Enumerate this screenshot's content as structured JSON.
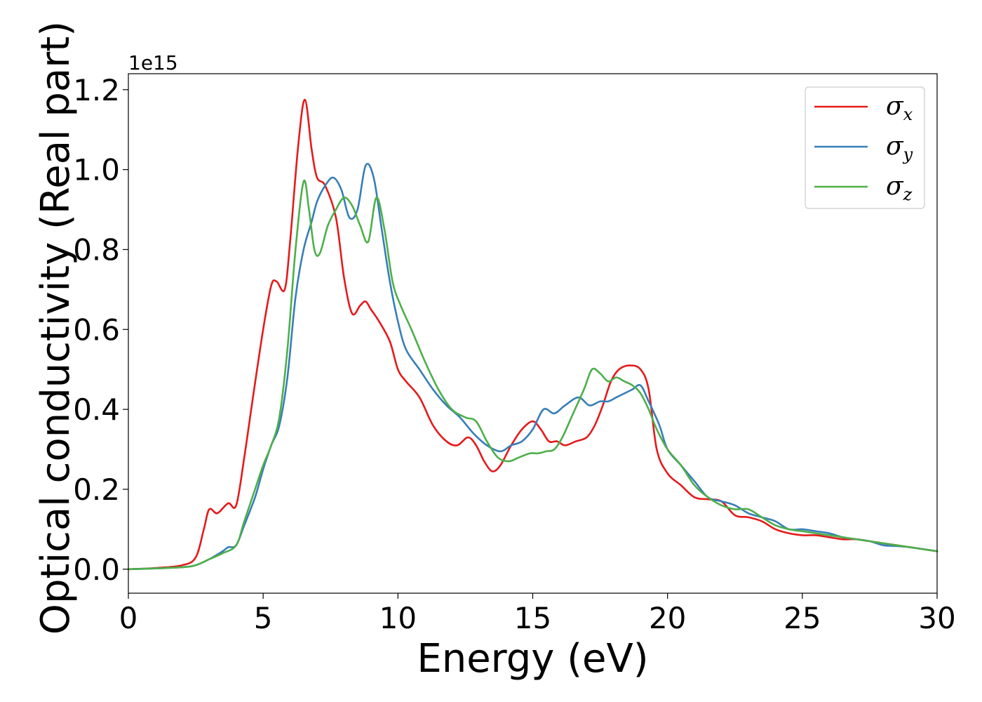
{
  "chart_data": {
    "type": "line",
    "title": "",
    "xlabel": "Energy (eV)",
    "ylabel": "Optical conductivity (Real part)",
    "y_offset_label": "1e15",
    "xlim": [
      0,
      30
    ],
    "ylim": [
      -0.06,
      1.24
    ],
    "y_scale_factor": 1000000000000000.0,
    "xticks": [
      0,
      5,
      10,
      15,
      20,
      25,
      30
    ],
    "xtick_labels": [
      "0",
      "5",
      "10",
      "15",
      "20",
      "25",
      "30"
    ],
    "yticks": [
      0.0,
      0.2,
      0.4,
      0.6,
      0.8,
      1.0,
      1.2
    ],
    "ytick_labels": [
      "0.0",
      "0.2",
      "0.4",
      "0.6",
      "0.8",
      "1.0",
      "1.2"
    ],
    "grid": false,
    "legend_position": "top-right",
    "series": [
      {
        "name": "σ",
        "subscript": "x",
        "color": "#e41a1c",
        "x": [
          0,
          1,
          2,
          2.5,
          2.8,
          3.0,
          3.3,
          3.7,
          4.0,
          4.3,
          4.6,
          5.0,
          5.3,
          5.5,
          5.8,
          6.0,
          6.3,
          6.55,
          6.8,
          7.0,
          7.3,
          7.7,
          8.0,
          8.3,
          8.6,
          8.8,
          9.0,
          9.3,
          9.7,
          10.0,
          10.3,
          10.8,
          11.3,
          11.8,
          12.2,
          12.6,
          12.9,
          13.2,
          13.5,
          13.8,
          14.2,
          14.6,
          15.0,
          15.3,
          15.6,
          15.9,
          16.2,
          16.6,
          17.0,
          17.3,
          17.6,
          17.9,
          18.2,
          18.6,
          19.0,
          19.3,
          19.6,
          20.0,
          20.5,
          21.0,
          21.5,
          22.0,
          22.5,
          23.0,
          23.5,
          24.0,
          24.5,
          25.0,
          25.5,
          26.0,
          26.5,
          27.0,
          27.5,
          28.0,
          28.5,
          29.0,
          29.5,
          30.0
        ],
        "y": [
          0.0,
          0.003,
          0.01,
          0.03,
          0.1,
          0.15,
          0.14,
          0.165,
          0.16,
          0.28,
          0.42,
          0.6,
          0.71,
          0.72,
          0.7,
          0.82,
          1.06,
          1.175,
          1.05,
          0.98,
          0.96,
          0.88,
          0.73,
          0.64,
          0.66,
          0.67,
          0.65,
          0.62,
          0.57,
          0.5,
          0.47,
          0.43,
          0.36,
          0.32,
          0.31,
          0.33,
          0.31,
          0.27,
          0.245,
          0.26,
          0.31,
          0.35,
          0.37,
          0.35,
          0.32,
          0.32,
          0.31,
          0.32,
          0.33,
          0.36,
          0.41,
          0.47,
          0.5,
          0.51,
          0.5,
          0.45,
          0.3,
          0.24,
          0.21,
          0.18,
          0.175,
          0.17,
          0.135,
          0.13,
          0.12,
          0.1,
          0.09,
          0.085,
          0.085,
          0.08,
          0.075,
          0.075,
          0.07,
          0.065,
          0.06,
          0.055,
          0.05,
          0.045
        ]
      },
      {
        "name": "σ",
        "subscript": "y",
        "color": "#377eb8",
        "x": [
          0,
          1,
          2,
          2.5,
          3.0,
          3.5,
          3.7,
          4.0,
          4.3,
          4.7,
          5.0,
          5.3,
          5.6,
          5.9,
          6.2,
          6.5,
          6.8,
          7.0,
          7.3,
          7.6,
          7.9,
          8.2,
          8.5,
          8.8,
          9.1,
          9.4,
          9.7,
          10.0,
          10.3,
          10.8,
          11.3,
          11.8,
          12.3,
          12.8,
          13.3,
          13.8,
          14.2,
          14.6,
          15.0,
          15.4,
          15.8,
          16.2,
          16.7,
          17.1,
          17.5,
          17.8,
          18.1,
          18.4,
          18.7,
          19.0,
          19.3,
          19.7,
          20.0,
          20.5,
          21.0,
          21.5,
          22.0,
          22.5,
          23.0,
          23.5,
          24.0,
          24.5,
          25.0,
          25.5,
          26.0,
          26.5,
          27.0,
          27.5,
          28.0,
          28.5,
          29.0,
          29.5,
          30.0
        ],
        "y": [
          0.0,
          0.002,
          0.005,
          0.01,
          0.025,
          0.045,
          0.055,
          0.06,
          0.11,
          0.18,
          0.25,
          0.31,
          0.36,
          0.48,
          0.68,
          0.8,
          0.87,
          0.92,
          0.96,
          0.98,
          0.95,
          0.88,
          0.9,
          1.01,
          0.98,
          0.85,
          0.72,
          0.62,
          0.55,
          0.5,
          0.45,
          0.41,
          0.38,
          0.34,
          0.31,
          0.295,
          0.31,
          0.32,
          0.35,
          0.4,
          0.39,
          0.41,
          0.43,
          0.41,
          0.42,
          0.42,
          0.43,
          0.44,
          0.45,
          0.46,
          0.42,
          0.36,
          0.3,
          0.26,
          0.22,
          0.18,
          0.17,
          0.16,
          0.14,
          0.13,
          0.12,
          0.1,
          0.1,
          0.095,
          0.09,
          0.08,
          0.075,
          0.07,
          0.06,
          0.058,
          0.055,
          0.05,
          0.045
        ]
      },
      {
        "name": "σ",
        "subscript": "z",
        "color": "#4daf4a",
        "x": [
          0,
          1,
          2,
          2.5,
          3.0,
          3.5,
          4.0,
          4.3,
          4.7,
          5.0,
          5.3,
          5.6,
          5.9,
          6.2,
          6.5,
          6.7,
          6.9,
          7.1,
          7.4,
          7.7,
          8.0,
          8.3,
          8.6,
          8.9,
          9.2,
          9.5,
          9.8,
          10.1,
          10.5,
          11.0,
          11.5,
          12.0,
          12.5,
          12.9,
          13.3,
          13.7,
          14.1,
          14.5,
          14.9,
          15.2,
          15.5,
          15.8,
          16.1,
          16.5,
          16.9,
          17.2,
          17.5,
          17.8,
          18.1,
          18.4,
          18.7,
          19.0,
          19.3,
          19.6,
          20.0,
          20.5,
          21.0,
          21.5,
          22.0,
          22.5,
          23.0,
          23.5,
          24.0,
          24.5,
          25.0,
          25.5,
          26.0,
          26.5,
          27.0,
          27.5,
          28.0,
          28.5,
          29.0,
          29.5,
          30.0
        ],
        "y": [
          0.0,
          0.002,
          0.005,
          0.01,
          0.025,
          0.04,
          0.06,
          0.12,
          0.2,
          0.26,
          0.31,
          0.38,
          0.55,
          0.8,
          0.97,
          0.9,
          0.8,
          0.79,
          0.86,
          0.9,
          0.93,
          0.91,
          0.86,
          0.82,
          0.93,
          0.85,
          0.72,
          0.66,
          0.6,
          0.52,
          0.45,
          0.4,
          0.38,
          0.37,
          0.32,
          0.28,
          0.27,
          0.28,
          0.29,
          0.29,
          0.295,
          0.3,
          0.33,
          0.39,
          0.45,
          0.5,
          0.49,
          0.47,
          0.48,
          0.47,
          0.46,
          0.44,
          0.4,
          0.35,
          0.3,
          0.26,
          0.21,
          0.18,
          0.16,
          0.15,
          0.15,
          0.13,
          0.11,
          0.1,
          0.095,
          0.09,
          0.085,
          0.08,
          0.075,
          0.07,
          0.065,
          0.06,
          0.055,
          0.05,
          0.045
        ]
      }
    ]
  }
}
